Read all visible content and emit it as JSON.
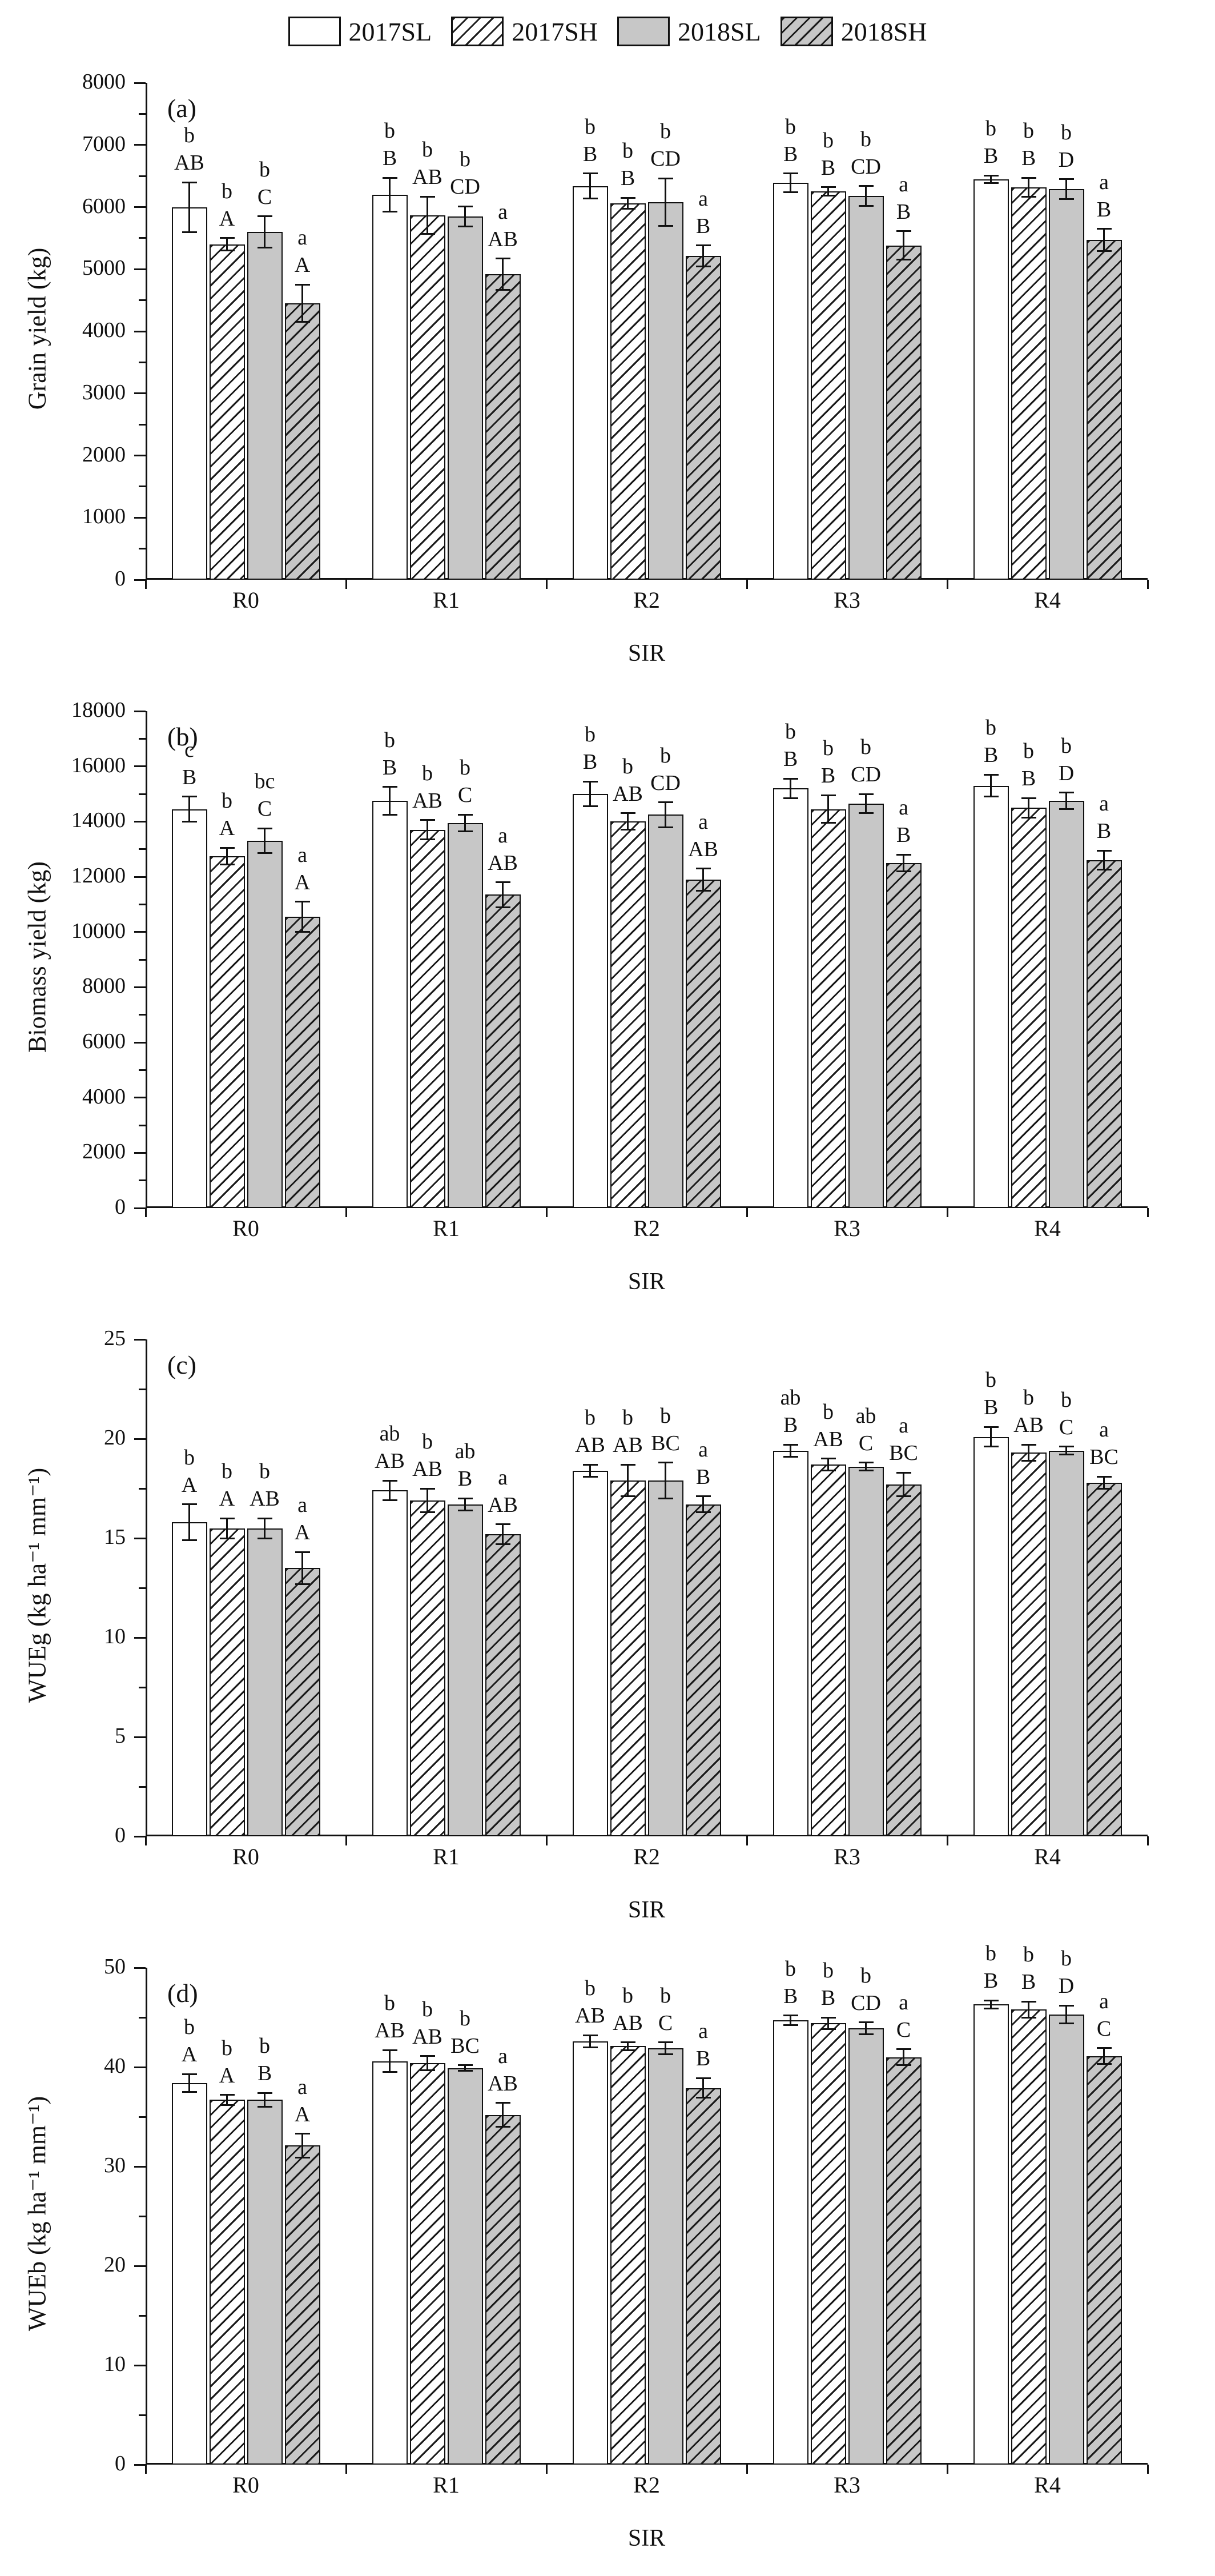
{
  "figure": {
    "background": "#ffffff",
    "axis_color": "#111111",
    "gray_fill": "#c7c7c7",
    "x_axis_title": "SIR",
    "categories": [
      "R0",
      "R1",
      "R2",
      "R3",
      "R4"
    ],
    "legend": [
      {
        "label": "2017SL",
        "fill": "white",
        "hatch": false
      },
      {
        "label": "2017SH",
        "fill": "white",
        "hatch": true
      },
      {
        "label": "2018SL",
        "fill": "gray",
        "hatch": false
      },
      {
        "label": "2018SH",
        "fill": "gray",
        "hatch": true
      }
    ]
  },
  "chart_data": [
    {
      "type": "bar",
      "panel_tag": "(a)",
      "ylabel": "Grain yield (kg)",
      "xlabel": "SIR",
      "ylim": [
        0,
        8000
      ],
      "ytick_step": 1000,
      "grid": false,
      "legend_position": "top",
      "categories": [
        "R0",
        "R1",
        "R2",
        "R3",
        "R4"
      ],
      "series": [
        {
          "name": "2017SL",
          "values": [
            6000,
            6200,
            6340,
            6390,
            6450
          ],
          "errors": [
            400,
            270,
            200,
            150,
            60
          ],
          "sig_lower": [
            "b",
            "b",
            "b",
            "b",
            "b"
          ],
          "sig_upper": [
            "AB",
            "B",
            "B",
            "B",
            "B"
          ]
        },
        {
          "name": "2017SH",
          "values": [
            5400,
            5870,
            6060,
            6250,
            6320
          ],
          "errors": [
            100,
            300,
            90,
            70,
            150
          ],
          "sig_lower": [
            "b",
            "b",
            "b",
            "b",
            "b"
          ],
          "sig_upper": [
            "A",
            "AB",
            "B",
            "B",
            "B"
          ]
        },
        {
          "name": "2018SL",
          "values": [
            5600,
            5850,
            6080,
            6180,
            6290
          ],
          "errors": [
            250,
            160,
            380,
            160,
            160
          ],
          "sig_lower": [
            "b",
            "b",
            "b",
            "b",
            "b"
          ],
          "sig_upper": [
            "C",
            "CD",
            "CD",
            "CD",
            "D"
          ]
        },
        {
          "name": "2018SH",
          "values": [
            4450,
            4920,
            5210,
            5380,
            5470
          ],
          "errors": [
            300,
            250,
            170,
            230,
            180
          ],
          "sig_lower": [
            "a",
            "a",
            "a",
            "a",
            "a"
          ],
          "sig_upper": [
            "A",
            "AB",
            "B",
            "B",
            "B"
          ]
        }
      ]
    },
    {
      "type": "bar",
      "panel_tag": "(b)",
      "ylabel": "Biomass yield (kg)",
      "xlabel": "SIR",
      "ylim": [
        0,
        18000
      ],
      "ytick_step": 2000,
      "grid": false,
      "legend_position": "top",
      "categories": [
        "R0",
        "R1",
        "R2",
        "R3",
        "R4"
      ],
      "series": [
        {
          "name": "2017SL",
          "values": [
            14450,
            14750,
            15000,
            15200,
            15300
          ],
          "errors": [
            450,
            500,
            450,
            350,
            400
          ],
          "sig_lower": [
            "c",
            "b",
            "b",
            "b",
            "b"
          ],
          "sig_upper": [
            "B",
            "B",
            "B",
            "B",
            "B"
          ]
        },
        {
          "name": "2017SH",
          "values": [
            12750,
            13700,
            14000,
            14450,
            14500
          ],
          "errors": [
            300,
            350,
            300,
            500,
            350
          ],
          "sig_lower": [
            "b",
            "b",
            "b",
            "b",
            "b"
          ],
          "sig_upper": [
            "A",
            "AB",
            "AB",
            "B",
            "B"
          ]
        },
        {
          "name": "2018SL",
          "values": [
            13300,
            13950,
            14250,
            14650,
            14750
          ],
          "errors": [
            450,
            300,
            450,
            350,
            300
          ],
          "sig_lower": [
            "bc",
            "b",
            "b",
            "b",
            "b"
          ],
          "sig_upper": [
            "C",
            "C",
            "CD",
            "CD",
            "D"
          ]
        },
        {
          "name": "2018SH",
          "values": [
            10550,
            11350,
            11900,
            12500,
            12600
          ],
          "errors": [
            550,
            450,
            400,
            300,
            350
          ],
          "sig_lower": [
            "a",
            "a",
            "a",
            "a",
            "a"
          ],
          "sig_upper": [
            "A",
            "AB",
            "AB",
            "B",
            "B"
          ]
        }
      ]
    },
    {
      "type": "bar",
      "panel_tag": "(c)",
      "ylabel": "WUEg (kg ha⁻¹ mm⁻¹)",
      "xlabel": "SIR",
      "ylim": [
        0,
        25
      ],
      "ytick_step": 5,
      "grid": false,
      "legend_position": "top",
      "categories": [
        "R0",
        "R1",
        "R2",
        "R3",
        "R4"
      ],
      "series": [
        {
          "name": "2017SL",
          "values": [
            15.8,
            17.4,
            18.4,
            19.4,
            20.1
          ],
          "errors": [
            0.9,
            0.5,
            0.3,
            0.3,
            0.5
          ],
          "sig_lower": [
            "b",
            "ab",
            "b",
            "ab",
            "b"
          ],
          "sig_upper": [
            "A",
            "AB",
            "AB",
            "B",
            "B"
          ]
        },
        {
          "name": "2017SH",
          "values": [
            15.5,
            16.9,
            17.9,
            18.7,
            19.3
          ],
          "errors": [
            0.5,
            0.6,
            0.8,
            0.3,
            0.4
          ],
          "sig_lower": [
            "b",
            "b",
            "b",
            "b",
            "b"
          ],
          "sig_upper": [
            "A",
            "AB",
            "AB",
            "AB",
            "AB"
          ]
        },
        {
          "name": "2018SL",
          "values": [
            15.5,
            16.7,
            17.9,
            18.6,
            19.4
          ],
          "errors": [
            0.5,
            0.3,
            0.9,
            0.2,
            0.2
          ],
          "sig_lower": [
            "b",
            "ab",
            "b",
            "ab",
            "b"
          ],
          "sig_upper": [
            "AB",
            "B",
            "BC",
            "C",
            "C"
          ]
        },
        {
          "name": "2018SH",
          "values": [
            13.5,
            15.2,
            16.7,
            17.7,
            17.8
          ],
          "errors": [
            0.8,
            0.5,
            0.4,
            0.6,
            0.3
          ],
          "sig_lower": [
            "a",
            "a",
            "a",
            "a",
            "a"
          ],
          "sig_upper": [
            "A",
            "AB",
            "B",
            "BC",
            "BC"
          ]
        }
      ]
    },
    {
      "type": "bar",
      "panel_tag": "(d)",
      "ylabel": "WUEb (kg ha⁻¹ mm⁻¹)",
      "xlabel": "SIR",
      "ylim": [
        0,
        50
      ],
      "ytick_step": 10,
      "grid": false,
      "legend_position": "top",
      "categories": [
        "R0",
        "R1",
        "R2",
        "R3",
        "R4"
      ],
      "series": [
        {
          "name": "2017SL",
          "values": [
            38.4,
            40.6,
            42.6,
            44.7,
            46.3
          ],
          "errors": [
            0.9,
            1.1,
            0.6,
            0.5,
            0.4
          ],
          "sig_lower": [
            "b",
            "b",
            "b",
            "b",
            "b"
          ],
          "sig_upper": [
            "A",
            "AB",
            "AB",
            "B",
            "B"
          ]
        },
        {
          "name": "2017SH",
          "values": [
            36.7,
            40.4,
            42.1,
            44.4,
            45.8
          ],
          "errors": [
            0.5,
            0.7,
            0.4,
            0.6,
            0.8
          ],
          "sig_lower": [
            "b",
            "b",
            "b",
            "b",
            "b"
          ],
          "sig_upper": [
            "A",
            "AB",
            "AB",
            "B",
            "B"
          ]
        },
        {
          "name": "2018SL",
          "values": [
            36.7,
            39.9,
            41.9,
            43.9,
            45.3
          ],
          "errors": [
            0.7,
            0.3,
            0.6,
            0.6,
            0.9
          ],
          "sig_lower": [
            "b",
            "b",
            "b",
            "b",
            "b"
          ],
          "sig_upper": [
            "B",
            "BC",
            "C",
            "CD",
            "D"
          ]
        },
        {
          "name": "2018SH",
          "values": [
            32.1,
            35.2,
            37.9,
            41.0,
            41.1
          ],
          "errors": [
            1.2,
            1.2,
            1.0,
            0.8,
            0.8
          ],
          "sig_lower": [
            "a",
            "a",
            "a",
            "a",
            "a"
          ],
          "sig_upper": [
            "A",
            "AB",
            "B",
            "C",
            "C"
          ]
        }
      ]
    }
  ]
}
